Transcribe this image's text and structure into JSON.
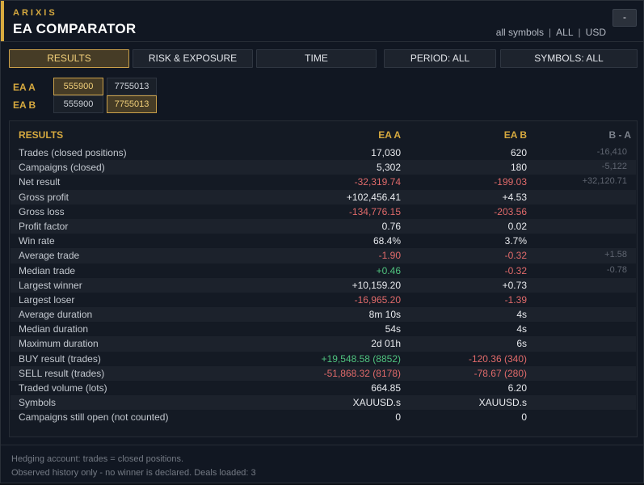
{
  "header": {
    "brand": "ARIXIS",
    "title": "EA COMPARATOR",
    "scope": "all symbols",
    "filter": "ALL",
    "currency": "USD",
    "minimize_label": "-"
  },
  "tabs": [
    {
      "label": "RESULTS",
      "active": true
    },
    {
      "label": "RISK & EXPOSURE",
      "active": false
    },
    {
      "label": "TIME",
      "active": false
    },
    {
      "label": "PERIOD: ALL",
      "active": false
    },
    {
      "label": "SYMBOLS: ALL",
      "active": false
    }
  ],
  "ea_a": {
    "label": "EA A",
    "accounts": [
      "555900",
      "7755013"
    ],
    "selected": "555900"
  },
  "ea_b": {
    "label": "EA B",
    "accounts": [
      "555900",
      "7755013"
    ],
    "selected": "7755013"
  },
  "table": {
    "headers": {
      "section": "RESULTS",
      "a": "EA A",
      "b": "EA B",
      "diff": "B - A"
    },
    "rows": [
      {
        "label": "Trades (closed positions)",
        "a": "17,030",
        "b": "620",
        "diff": "-16,410"
      },
      {
        "label": "Campaigns (closed)",
        "a": "5,302",
        "b": "180",
        "diff": "-5,122"
      },
      {
        "label": "Net result",
        "a": "-32,319.74",
        "b": "-199.03",
        "diff": "+32,120.71"
      },
      {
        "label": "Gross profit",
        "a": "+102,456.41",
        "b": "+4.53",
        "diff": ""
      },
      {
        "label": "Gross loss",
        "a": "-134,776.15",
        "b": "-203.56",
        "diff": ""
      },
      {
        "label": "Profit factor",
        "a": "0.76",
        "b": "0.02",
        "diff": ""
      },
      {
        "label": "Win rate",
        "a": "68.4%",
        "b": "3.7%",
        "diff": ""
      },
      {
        "label": "Average trade",
        "a": "-1.90",
        "b": "-0.32",
        "diff": "+1.58"
      },
      {
        "label": "Median trade",
        "a": "+0.46",
        "b": "-0.32",
        "diff": "-0.78"
      },
      {
        "label": "Largest winner",
        "a": "+10,159.20",
        "b": "+0.73",
        "diff": ""
      },
      {
        "label": "Largest loser",
        "a": "-16,965.20",
        "b": "-1.39",
        "diff": ""
      },
      {
        "label": "Average duration",
        "a": "8m 10s",
        "b": "4s",
        "diff": ""
      },
      {
        "label": "Median duration",
        "a": "54s",
        "b": "4s",
        "diff": ""
      },
      {
        "label": "Maximum duration",
        "a": "2d 01h",
        "b": "6s",
        "diff": ""
      },
      {
        "label": "BUY result (trades)",
        "a": "+19,548.58 (8852)",
        "b": "-120.36 (340)",
        "diff": ""
      },
      {
        "label": "SELL result (trades)",
        "a": "-51,868.32 (8178)",
        "b": "-78.67 (280)",
        "diff": ""
      },
      {
        "label": "Traded volume (lots)",
        "a": "664.85",
        "b": "6.20",
        "diff": ""
      },
      {
        "label": "Symbols",
        "a": "XAUUSD.s",
        "b": "XAUUSD.s",
        "diff": ""
      },
      {
        "label": "Campaigns still open (not counted)",
        "a": "0",
        "b": "0",
        "diff": ""
      }
    ]
  },
  "footer": {
    "line1": "Hedging account: trades = closed positions.",
    "line2": "Observed history only - no winner is declared.  Deals loaded: 3"
  },
  "colors": {
    "accent": "#d6a93f",
    "negative": "#e06a6a",
    "positive": "#4fc27e"
  }
}
